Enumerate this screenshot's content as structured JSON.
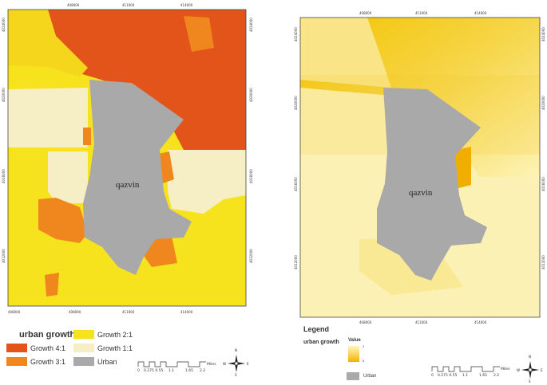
{
  "left_map": {
    "x_ticks": [
      "408000",
      "411000",
      "414000"
    ],
    "y_ticks": [
      "4024000",
      "4020000",
      "4016000",
      "4012000"
    ],
    "city_label": "qazvin",
    "legend": {
      "title": "urban growth",
      "items": [
        {
          "label": "Growth 4:1",
          "color": "#e2541a"
        },
        {
          "label": "Growth 3:1",
          "color": "#f0861e"
        },
        {
          "label": "Urban",
          "color": "#a9a9a9"
        },
        {
          "label": "Growth 2:1",
          "color": "#f7e21e"
        },
        {
          "label": "Growth 1:1",
          "color": "#f6efc6"
        }
      ]
    },
    "scale": {
      "labels": [
        "0",
        "0.275 0.55",
        "1.1",
        "1.65",
        "2.2"
      ],
      "unit": "Miles"
    }
  },
  "right_map": {
    "x_ticks": [
      "408000",
      "411000",
      "414000"
    ],
    "y_ticks": [
      "4024000",
      "4020000",
      "4016000",
      "4012000"
    ],
    "city_label": "qazvin",
    "legend": {
      "title": "Legend",
      "subtitle": "urban growth",
      "value_label": "Value",
      "value_high": "1",
      "value_low": "0",
      "urban_label": "Urban",
      "gradient_top": "#fff6c0",
      "gradient_bottom": "#f1b400"
    },
    "scale": {
      "labels": [
        "0",
        "0.275 0.55",
        "1.1",
        "1.65",
        "2.2"
      ],
      "unit": "Miles"
    }
  },
  "north_arrow": {
    "n": "N",
    "s": "S",
    "e": "E",
    "w": "W"
  }
}
